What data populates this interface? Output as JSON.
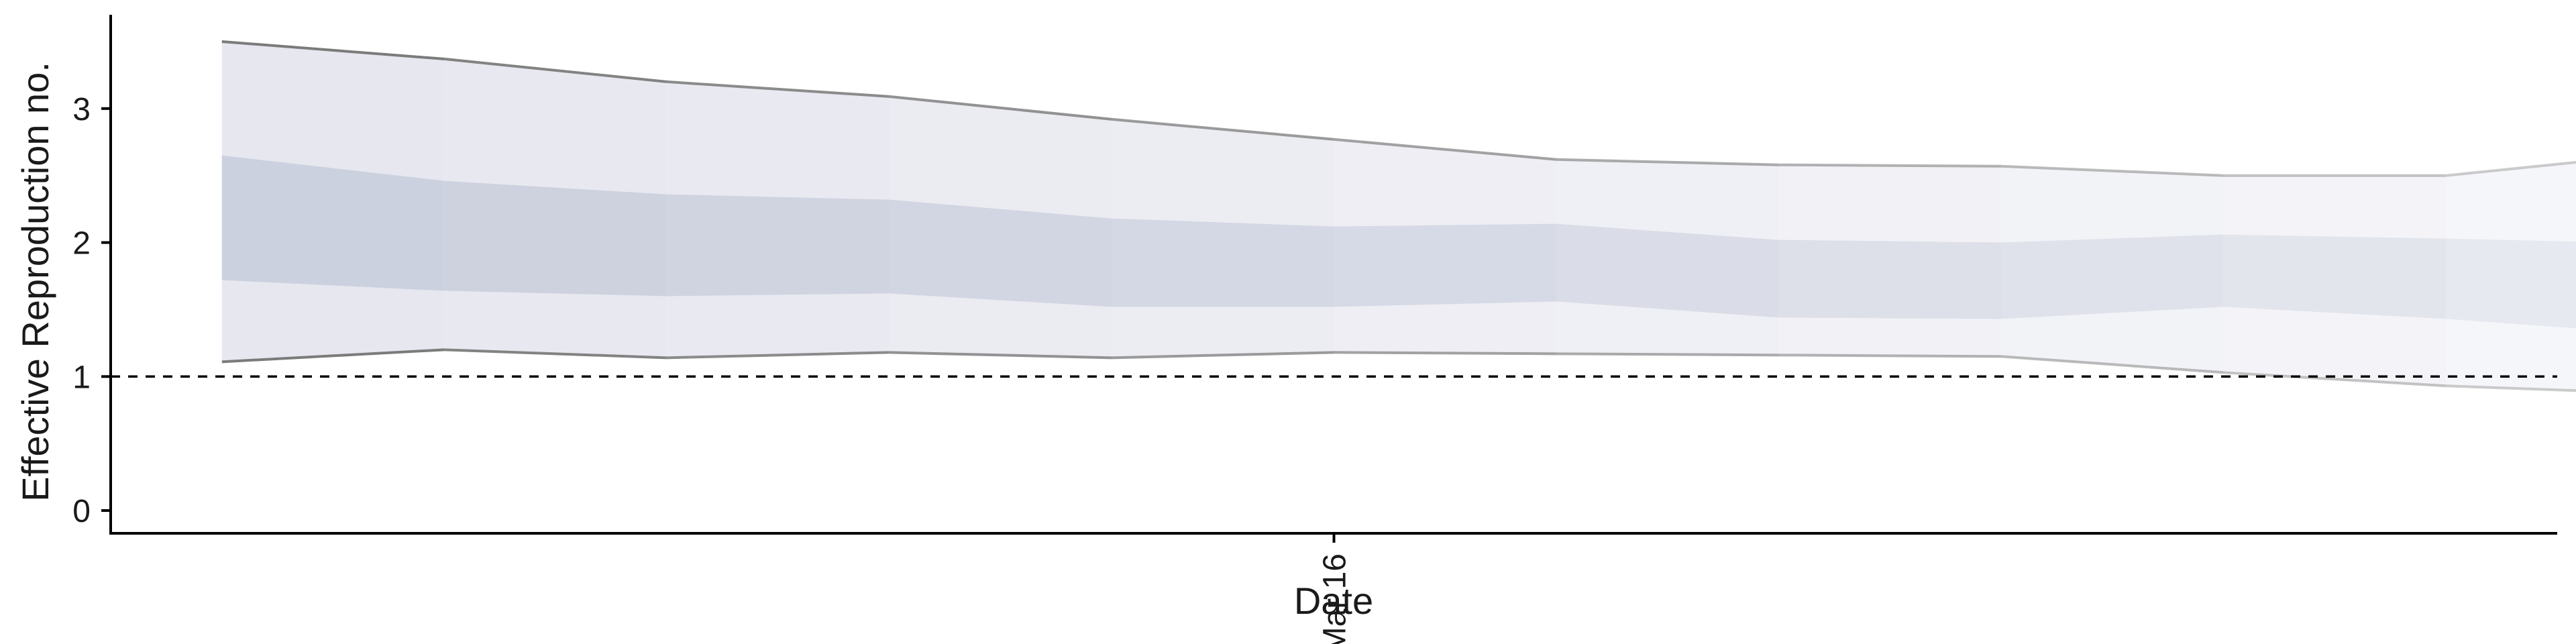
{
  "chart_data": {
    "type": "area",
    "title": "",
    "xlabel": "Date",
    "ylabel": "Effective Reproduction no.",
    "xlim": [
      "2020-03-05",
      "2020-03-27"
    ],
    "ylim": [
      -0.17,
      3.7
    ],
    "yticks": [
      0,
      1,
      2,
      3
    ],
    "xticks": [
      {
        "date": "2020-03-16",
        "label": "Mar 16"
      }
    ],
    "reference_line": {
      "y": 1,
      "style": "dashed"
    },
    "grid": false,
    "legend": "none",
    "colors": {
      "band_outer": "#e6e7ef",
      "band_inner": "#c6ccdb",
      "bound_line": "#7b7b7b",
      "axis": "#000000",
      "reference": "#000000"
    },
    "series": {
      "dates": [
        "2020-03-06",
        "2020-03-08",
        "2020-03-10",
        "2020-03-12",
        "2020-03-14",
        "2020-03-16",
        "2020-03-18",
        "2020-03-20",
        "2020-03-22",
        "2020-03-24",
        "2020-03-26"
      ],
      "outer_upper": [
        3.5,
        3.37,
        3.2,
        3.09,
        2.92,
        2.77,
        2.62,
        2.58,
        2.57,
        2.5,
        2.5
      ],
      "inner_upper": [
        2.65,
        2.46,
        2.36,
        2.32,
        2.18,
        2.12,
        2.14,
        2.02,
        2.0,
        2.06,
        2.03
      ],
      "inner_lower": [
        1.72,
        1.64,
        1.6,
        1.62,
        1.52,
        1.52,
        1.56,
        1.44,
        1.43,
        1.52,
        1.43
      ],
      "outer_lower": [
        1.11,
        1.2,
        1.14,
        1.18,
        1.14,
        1.18,
        1.17,
        1.16,
        1.15,
        1.03,
        0.93
      ],
      "end_date": "2020-03-28",
      "end_outer_upper": 2.67,
      "end_inner_upper": 1.99,
      "end_inner_lower": 1.31,
      "end_outer_lower": 0.87
    }
  }
}
